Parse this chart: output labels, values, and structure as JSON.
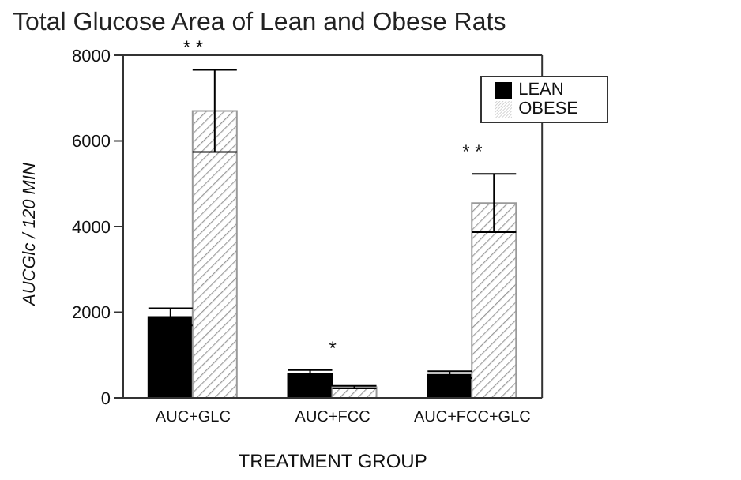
{
  "chart_data": {
    "type": "bar",
    "title": "Total Glucose Area of Lean and Obese Rats",
    "xlabel": "TREATMENT  GROUP",
    "ylabel": "AUCGlc / 120 MIN",
    "categories": [
      "AUC+GLC",
      "AUC+FCC",
      "AUC+FCC+GLC"
    ],
    "series": [
      {
        "name": "LEAN",
        "color": "#000000",
        "values": [
          1890,
          570,
          540
        ],
        "errors": [
          200,
          80,
          80
        ]
      },
      {
        "name": "OBESE",
        "color": "#9a9a9a",
        "values": [
          6700,
          250,
          4550
        ],
        "errors": [
          960,
          30,
          680
        ]
      }
    ],
    "ylim": [
      0,
      8000
    ],
    "yticks": [
      0,
      2000,
      4000,
      6000,
      8000
    ],
    "grid": false,
    "legend": "top right",
    "annotations": [
      "* *",
      "*",
      "* *"
    ]
  }
}
